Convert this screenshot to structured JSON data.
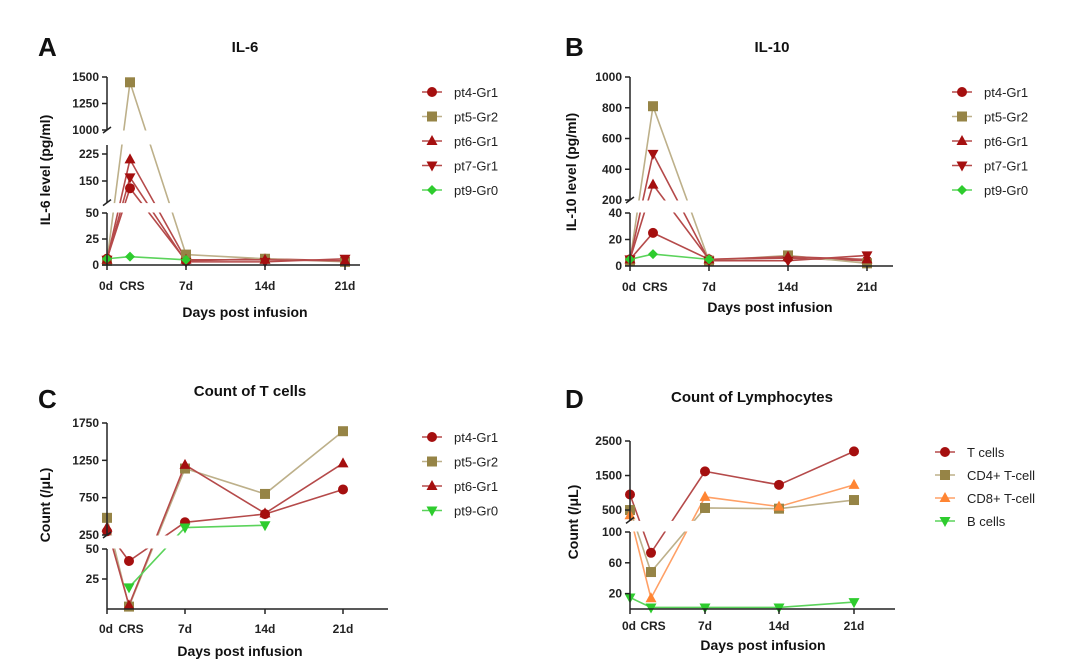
{
  "chart_data": [
    {
      "type": "line",
      "panel_label": "A",
      "title": "IL-6",
      "xlabel": "Days post infusion",
      "ylabel": "IL-6 level (pg/ml)",
      "categories": [
        "0d",
        "CRS",
        "7d",
        "14d",
        "21d"
      ],
      "y_axis": "broken",
      "y_segments": [
        {
          "range": [
            0,
            50
          ],
          "ticks": [
            0,
            25,
            50
          ]
        },
        {
          "range": [
            90,
            250
          ],
          "ticks": [
            150,
            225
          ]
        },
        {
          "range": [
            1000,
            1500
          ],
          "ticks": [
            1000,
            1250,
            1500
          ]
        }
      ],
      "legend": "right",
      "series": [
        {
          "name": "pt4-Gr1",
          "marker": "circle",
          "color": "#a50f0f",
          "line_color": "#b54a4a",
          "values": [
            6,
            130,
            4,
            6,
            4
          ]
        },
        {
          "name": "pt5-Gr2",
          "marker": "square",
          "color": "#968446",
          "line_color": "#bdb08a",
          "values": [
            4,
            1450,
            10,
            6,
            3
          ]
        },
        {
          "name": "pt6-Gr1",
          "marker": "triangle-up",
          "color": "#a50f0f",
          "line_color": "#b54a4a",
          "values": [
            5,
            210,
            5,
            5,
            4
          ]
        },
        {
          "name": "pt7-Gr1",
          "marker": "triangle-down",
          "color": "#a50f0f",
          "line_color": "#b54a4a",
          "values": [
            5,
            160,
            3,
            3,
            6
          ]
        },
        {
          "name": "pt9-Gr0",
          "marker": "diamond",
          "color": "#2ecc2e",
          "line_color": "#5bd35b",
          "values": [
            6,
            8,
            5,
            null,
            null
          ]
        }
      ]
    },
    {
      "type": "line",
      "panel_label": "B",
      "title": "IL-10",
      "xlabel": "Days post infusion",
      "ylabel": "IL-10 level (pg/ml)",
      "categories": [
        "0d",
        "CRS",
        "7d",
        "14d",
        "21d"
      ],
      "y_axis": "broken",
      "y_segments": [
        {
          "range": [
            0,
            40
          ],
          "ticks": [
            0,
            20,
            40
          ]
        },
        {
          "range": [
            200,
            1000
          ],
          "ticks": [
            200,
            400,
            600,
            800,
            1000
          ]
        }
      ],
      "legend": "right",
      "series": [
        {
          "name": "pt4-Gr1",
          "marker": "circle",
          "color": "#a50f0f",
          "line_color": "#b54a4a",
          "values": [
            5,
            25,
            5,
            6,
            4
          ]
        },
        {
          "name": "pt5-Gr2",
          "marker": "square",
          "color": "#968446",
          "line_color": "#bdb08a",
          "values": [
            4,
            810,
            4,
            8,
            2
          ]
        },
        {
          "name": "pt6-Gr1",
          "marker": "triangle-up",
          "color": "#a50f0f",
          "line_color": "#b54a4a",
          "values": [
            5,
            300,
            5,
            7,
            5
          ]
        },
        {
          "name": "pt7-Gr1",
          "marker": "triangle-down",
          "color": "#a50f0f",
          "line_color": "#b54a4a",
          "values": [
            5,
            500,
            4,
            4,
            8
          ]
        },
        {
          "name": "pt9-Gr0",
          "marker": "diamond",
          "color": "#2ecc2e",
          "line_color": "#5bd35b",
          "values": [
            5,
            9,
            5,
            null,
            null
          ]
        }
      ]
    },
    {
      "type": "line",
      "panel_label": "C",
      "title": "Count of T cells",
      "xlabel": "Days post infusion",
      "ylabel": "Count (/μL)",
      "categories": [
        "0d",
        "CRS",
        "7d",
        "14d",
        "21d"
      ],
      "y_axis": "broken",
      "y_segments": [
        {
          "range": [
            0,
            50
          ],
          "ticks": [
            25,
            50
          ]
        },
        {
          "range": [
            250,
            1750
          ],
          "ticks": [
            250,
            750,
            1250,
            1750
          ]
        }
      ],
      "legend": "right",
      "series": [
        {
          "name": "pt4-Gr1",
          "marker": "circle",
          "color": "#a50f0f",
          "line_color": "#b54a4a",
          "values": [
            300,
            40,
            420,
            530,
            860
          ]
        },
        {
          "name": "pt5-Gr2",
          "marker": "square",
          "color": "#968446",
          "line_color": "#bdb08a",
          "values": [
            480,
            2,
            1140,
            800,
            1640
          ]
        },
        {
          "name": "pt6-Gr1",
          "marker": "triangle-up",
          "color": "#a50f0f",
          "line_color": "#b54a4a",
          "values": [
            350,
            3,
            1190,
            540,
            1210
          ]
        },
        {
          "name": "pt9-Gr0",
          "marker": "triangle-down",
          "color": "#2ecc2e",
          "line_color": "#5bd35b",
          "values": [
            null,
            18,
            350,
            380,
            null
          ]
        }
      ]
    },
    {
      "type": "line",
      "panel_label": "D",
      "title": "Count of Lymphocytes",
      "xlabel": "Days post infusion",
      "ylabel": "Count (/μL)",
      "categories": [
        "0d",
        "CRS",
        "7d",
        "14d",
        "21d"
      ],
      "y_axis": "broken",
      "y_segments": [
        {
          "range": [
            0,
            100
          ],
          "ticks": [
            20,
            60,
            100
          ]
        },
        {
          "range": [
            200,
            2500
          ],
          "ticks": [
            500,
            1500,
            2500
          ]
        }
      ],
      "legend": "right",
      "series": [
        {
          "name": "T cells",
          "marker": "circle",
          "color": "#a50f0f",
          "line_color": "#b54a4a",
          "values": [
            950,
            73,
            1620,
            1230,
            2200
          ]
        },
        {
          "name": "CD4+ T-cell",
          "marker": "square",
          "color": "#968446",
          "line_color": "#bdb08a",
          "values": [
            500,
            48,
            560,
            540,
            790
          ]
        },
        {
          "name": "CD8+ T-cell",
          "marker": "triangle-up",
          "color": "#ff8533",
          "line_color": "#ffa066",
          "values": [
            350,
            14,
            880,
            600,
            1230
          ]
        },
        {
          "name": "B cells",
          "marker": "triangle-down",
          "color": "#2ecc2e",
          "line_color": "#5bd35b",
          "values": [
            15,
            2,
            2,
            2,
            9
          ]
        }
      ]
    }
  ]
}
